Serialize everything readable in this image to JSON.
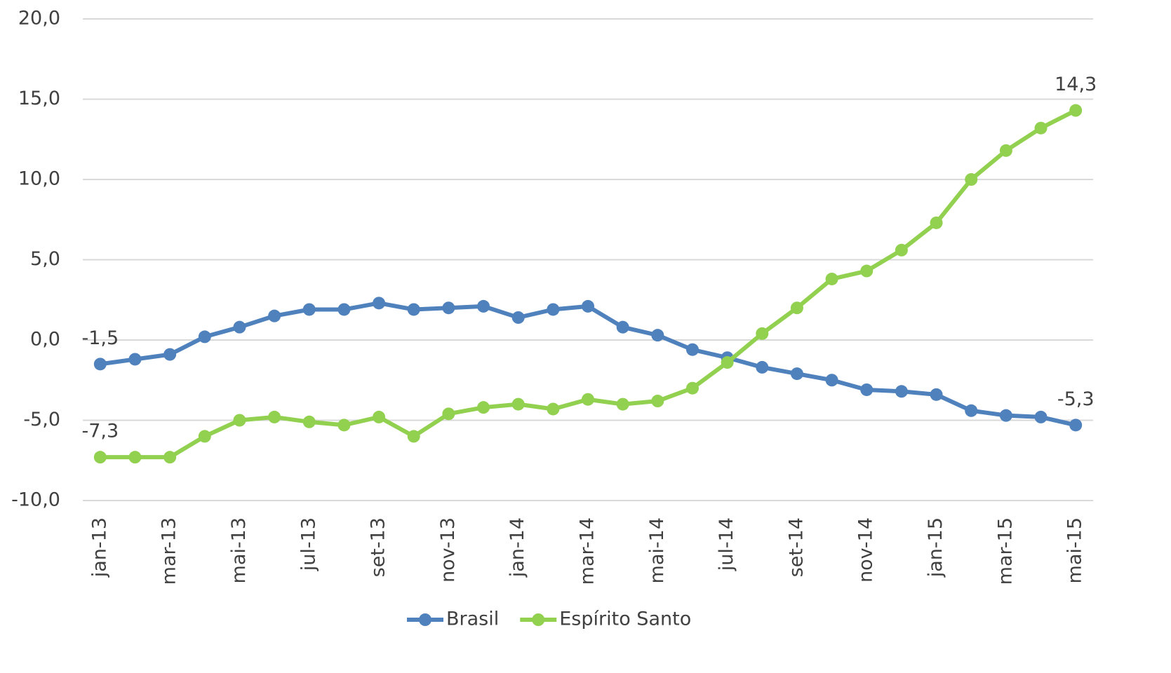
{
  "chart_data": {
    "type": "line",
    "categories": [
      "jan-13",
      null,
      "mar-13",
      null,
      "mai-13",
      null,
      "jul-13",
      null,
      "set-13",
      null,
      "nov-13",
      null,
      "jan-14",
      null,
      "mar-14",
      null,
      "mai-14",
      null,
      "jul-14",
      null,
      "set-14",
      null,
      "nov-14",
      null,
      "jan-15",
      null,
      "mar-15",
      null,
      "mai-15"
    ],
    "series": [
      {
        "name": "Brasil",
        "color": "#4f81bd",
        "values": [
          -1.5,
          -1.2,
          -0.9,
          0.2,
          0.8,
          1.5,
          1.9,
          1.9,
          2.3,
          1.9,
          2.0,
          2.1,
          1.4,
          1.9,
          2.1,
          0.8,
          0.3,
          -0.6,
          -1.1,
          -1.7,
          -2.1,
          -2.5,
          -3.1,
          -3.2,
          -3.4,
          -4.4,
          -4.7,
          -4.8,
          -5.3
        ],
        "value_labels": [
          "-1,5",
          null,
          null,
          null,
          null,
          null,
          null,
          null,
          null,
          null,
          null,
          null,
          null,
          null,
          null,
          null,
          null,
          null,
          null,
          null,
          null,
          null,
          null,
          null,
          null,
          null,
          null,
          null,
          "-5,3"
        ]
      },
      {
        "name": "Espírito Santo",
        "color": "#92d050",
        "values": [
          -7.3,
          -7.3,
          -7.3,
          -6.0,
          -5.0,
          -4.8,
          -5.1,
          -5.3,
          -4.8,
          -6.0,
          -4.6,
          -4.2,
          -4.0,
          -4.3,
          -3.7,
          -4.0,
          -3.8,
          -3.0,
          -1.4,
          0.4,
          2.0,
          3.8,
          4.3,
          5.6,
          7.3,
          10.0,
          11.8,
          13.2,
          14.3
        ],
        "value_labels": [
          "-7,3",
          null,
          null,
          null,
          null,
          null,
          null,
          null,
          null,
          null,
          null,
          null,
          null,
          null,
          null,
          null,
          null,
          null,
          null,
          null,
          null,
          null,
          null,
          null,
          null,
          null,
          null,
          null,
          "14,3"
        ]
      }
    ],
    "ylim": [
      -10,
      20
    ],
    "yticks": [
      {
        "value": -10,
        "label": "-10,0"
      },
      {
        "value": -5,
        "label": "-5,0"
      },
      {
        "value": 0,
        "label": "0,0"
      },
      {
        "value": 5,
        "label": "5,0"
      },
      {
        "value": 10,
        "label": "10,0"
      },
      {
        "value": 15,
        "label": "15,0"
      },
      {
        "value": 20,
        "label": "20,0"
      }
    ],
    "grid": true,
    "legend": "bottom"
  }
}
